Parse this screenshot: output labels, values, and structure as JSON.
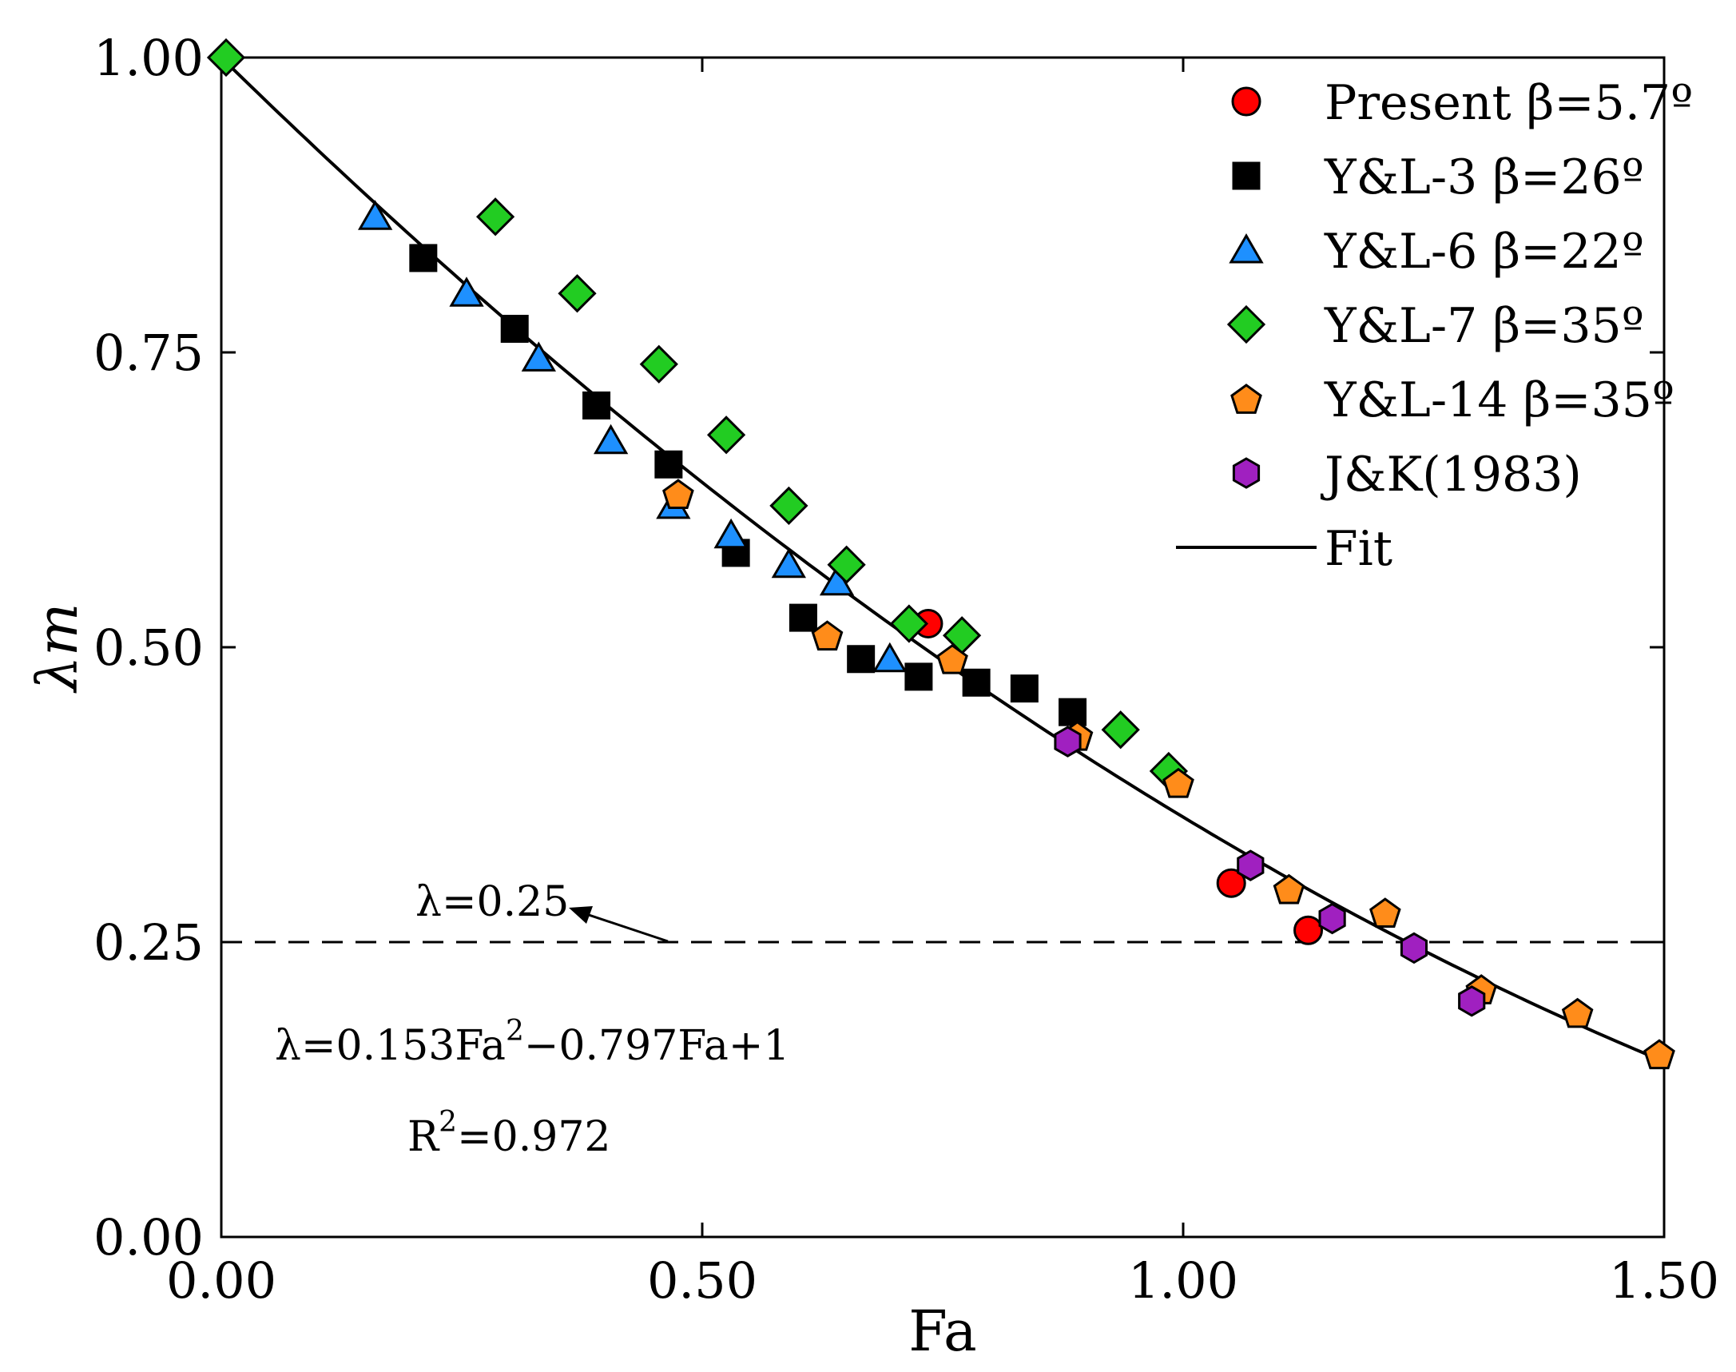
{
  "chart_data": {
    "type": "scatter",
    "xlabel": "Fa",
    "ylabel": "λm",
    "xlim": [
      0,
      1.5
    ],
    "ylim": [
      0,
      1.0
    ],
    "x_ticks": [
      "0.00",
      "0.50",
      "1.00",
      "1.50"
    ],
    "y_ticks": [
      "0.00",
      "0.25",
      "0.50",
      "0.75",
      "1.00"
    ],
    "grid": false,
    "legend_position": "top-right",
    "series": [
      {
        "name": "Present β=5.7º",
        "marker": "circle",
        "color": "#ff0000",
        "points": [
          [
            0.735,
            0.52
          ],
          [
            1.05,
            0.3
          ],
          [
            1.13,
            0.26
          ]
        ]
      },
      {
        "name": "Y&L-3   β=26º",
        "marker": "square",
        "color": "#000000",
        "points": [
          [
            0.21,
            0.83
          ],
          [
            0.305,
            0.77
          ],
          [
            0.39,
            0.705
          ],
          [
            0.465,
            0.655
          ],
          [
            0.535,
            0.58
          ],
          [
            0.605,
            0.525
          ],
          [
            0.665,
            0.49
          ],
          [
            0.725,
            0.475
          ],
          [
            0.785,
            0.47
          ],
          [
            0.835,
            0.465
          ],
          [
            0.885,
            0.445
          ]
        ]
      },
      {
        "name": "Y&L-6   β=22º",
        "marker": "triangle",
        "color": "#1e90ff",
        "points": [
          [
            0.16,
            0.865
          ],
          [
            0.255,
            0.8
          ],
          [
            0.33,
            0.745
          ],
          [
            0.405,
            0.675
          ],
          [
            0.47,
            0.62
          ],
          [
            0.53,
            0.595
          ],
          [
            0.59,
            0.57
          ],
          [
            0.64,
            0.555
          ],
          [
            0.695,
            0.49
          ]
        ]
      },
      {
        "name": "Y&L-7   β=35º",
        "marker": "diamond",
        "color": "#22cc22",
        "points": [
          [
            0.005,
            1.0
          ],
          [
            0.285,
            0.865
          ],
          [
            0.37,
            0.8
          ],
          [
            0.455,
            0.74
          ],
          [
            0.525,
            0.68
          ],
          [
            0.59,
            0.62
          ],
          [
            0.65,
            0.57
          ],
          [
            0.715,
            0.52
          ],
          [
            0.77,
            0.51
          ],
          [
            0.935,
            0.43
          ],
          [
            0.985,
            0.395
          ]
        ]
      },
      {
        "name": "Y&L-14  β=35º",
        "marker": "pentagon",
        "color": "#ff8c1a",
        "points": [
          [
            0.475,
            0.63
          ],
          [
            0.63,
            0.51
          ],
          [
            0.76,
            0.49
          ],
          [
            0.89,
            0.425
          ],
          [
            0.995,
            0.385
          ],
          [
            1.11,
            0.295
          ],
          [
            1.21,
            0.275
          ],
          [
            1.31,
            0.21
          ],
          [
            1.41,
            0.19
          ],
          [
            1.495,
            0.155
          ]
        ]
      },
      {
        "name": "J&K(1983)",
        "marker": "hexagon",
        "color": "#a020c0",
        "points": [
          [
            0.88,
            0.42
          ],
          [
            1.07,
            0.315
          ],
          [
            1.155,
            0.27
          ],
          [
            1.24,
            0.245
          ],
          [
            1.3,
            0.2
          ]
        ]
      }
    ],
    "fit": {
      "name": "Fit",
      "a": 0.153,
      "b": -0.797,
      "c": 1,
      "x_range": [
        0,
        1.5
      ]
    },
    "reference_line": {
      "y": 0.25,
      "style": "dashed"
    },
    "annotations": {
      "lambda_label": "λ=0.25",
      "equation_text": "λ=0.153Fa",
      "equation_exp": "2",
      "equation_rest": "−0.797Fa+1",
      "r2_prefix": "R",
      "r2_exp": "2",
      "r2_value": "=0.972"
    }
  }
}
